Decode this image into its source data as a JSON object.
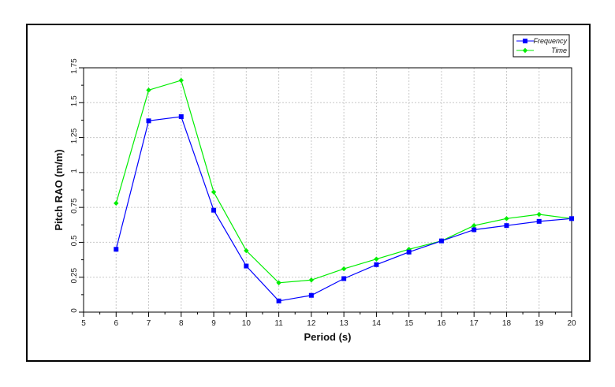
{
  "chart_data": {
    "type": "line",
    "title": "",
    "xlabel": "Period (s)",
    "ylabel": "Pitch RAO (m/m)",
    "xlim": [
      5,
      20
    ],
    "ylim": [
      0,
      1.75
    ],
    "xticks": [
      "5",
      "6",
      "7",
      "8",
      "9",
      "10",
      "11",
      "12",
      "13",
      "14",
      "15",
      "16",
      "17",
      "18",
      "19",
      "20"
    ],
    "yticks": [
      "0",
      "0.25",
      "0.5",
      "0.75",
      "1",
      "1.25",
      "1.5",
      "1.75"
    ],
    "grid": true,
    "legend_position": "top-right",
    "series": [
      {
        "name": "Frequency",
        "color": "#0000ff",
        "marker": "square",
        "x": [
          6,
          7,
          8,
          9,
          10,
          11,
          12,
          13,
          14,
          15,
          16,
          17,
          18,
          19,
          20
        ],
        "y": [
          0.45,
          1.37,
          1.4,
          0.73,
          0.33,
          0.08,
          0.12,
          0.24,
          0.34,
          0.43,
          0.51,
          0.59,
          0.62,
          0.65,
          0.67
        ]
      },
      {
        "name": "Time",
        "color": "#00ee00",
        "marker": "diamond",
        "x": [
          6,
          7,
          8,
          9,
          10,
          11,
          12,
          13,
          14,
          15,
          16,
          17,
          18,
          19,
          20
        ],
        "y": [
          0.78,
          1.59,
          1.66,
          0.86,
          0.44,
          0.21,
          0.23,
          0.31,
          0.38,
          0.45,
          0.51,
          0.62,
          0.67,
          0.7,
          0.67
        ]
      }
    ]
  }
}
